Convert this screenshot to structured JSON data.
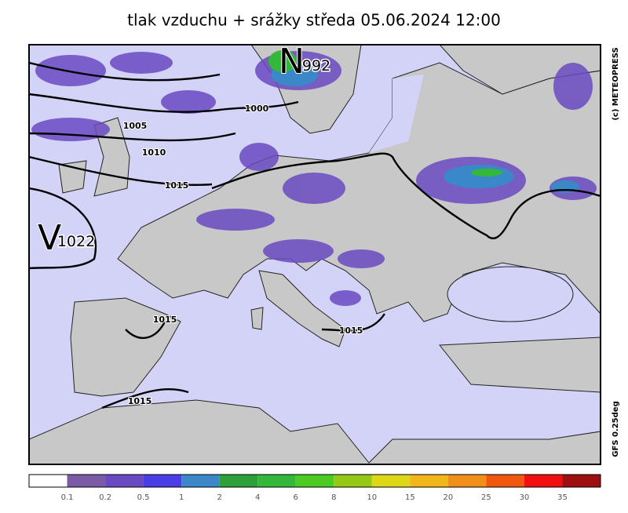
{
  "title": "tlak vzduchu + srážky  středa 05.06.2024 12:00",
  "copyright": "(c) METEOPRESS",
  "model": "GFS 0.25deg",
  "pressure_centers": [
    {
      "letter": "N",
      "value": "992"
    },
    {
      "letter": "V",
      "value": "1022"
    }
  ],
  "isobar_labels": [
    "1000",
    "1005",
    "1010",
    "1015",
    "1015",
    "1015",
    "1015"
  ],
  "legend": {
    "colors": [
      "#ffffff",
      "#7b5ba6",
      "#6a4ac2",
      "#4a3ee6",
      "#3a88c8",
      "#2ea03a",
      "#34b83a",
      "#4ccc22",
      "#96c818",
      "#dcd818",
      "#f2b618",
      "#f28e1a",
      "#f05810",
      "#f01010",
      "#9e1010"
    ],
    "ticks": [
      "0.1",
      "0.2",
      "0.5",
      "1",
      "2",
      "4",
      "6",
      "8",
      "10",
      "15",
      "20",
      "25",
      "30",
      "35"
    ]
  }
}
